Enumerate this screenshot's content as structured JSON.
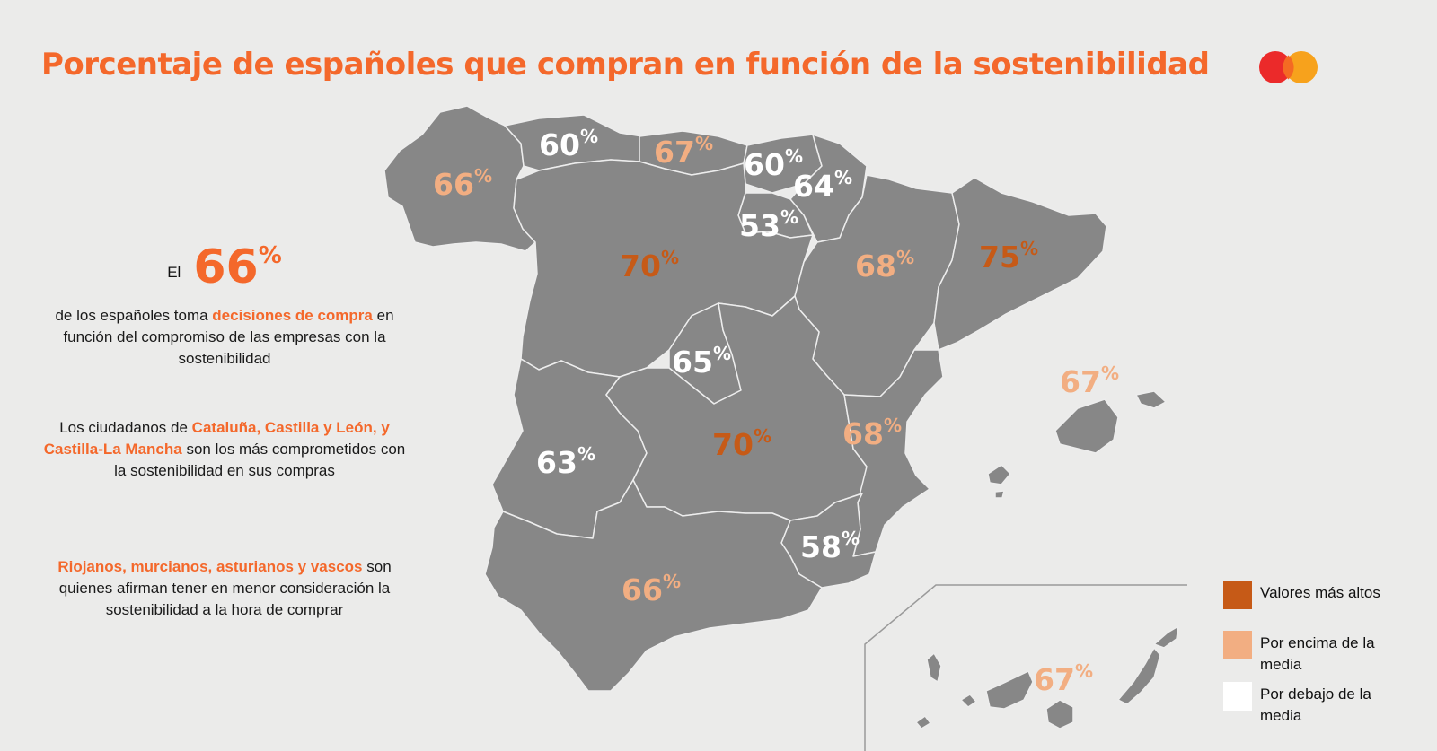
{
  "title": "Porcentaje de españoles que compran en función de la sostenibilidad",
  "logo_icon": "mastercard-circles-icon",
  "summary": {
    "prefix": "El",
    "value": "66",
    "unit": "%",
    "text_before": "de los españoles toma",
    "text_highlight": "decisiones de compra",
    "text_after": "en función del compromiso de las empresas con la sostenibilidad"
  },
  "paragraph_2": {
    "before": "Los ciudadanos de",
    "highlight": "Cataluña, Castilla y León, y Castilla-La Mancha",
    "after": "son los más comprometidos con la sostenibilidad en sus compras"
  },
  "paragraph_3": {
    "highlight": "Riojanos, murcianos, asturianos y vascos",
    "after": "son quienes afirman tener en menor consideración la sostenibilidad a la hora de comprar"
  },
  "regions": [
    {
      "value": "66",
      "unit": "%",
      "category": "above"
    },
    {
      "value": "60",
      "unit": "%",
      "category": "below"
    },
    {
      "value": "67",
      "unit": "%",
      "category": "above"
    },
    {
      "value": "60",
      "unit": "%",
      "category": "below"
    },
    {
      "value": "64",
      "unit": "%",
      "category": "below"
    },
    {
      "value": "53",
      "unit": "%",
      "category": "below"
    },
    {
      "value": "70",
      "unit": "%",
      "category": "high"
    },
    {
      "value": "68",
      "unit": "%",
      "category": "above"
    },
    {
      "value": "75",
      "unit": "%",
      "category": "high"
    },
    {
      "value": "65",
      "unit": "%",
      "category": "below"
    },
    {
      "value": "67",
      "unit": "%",
      "category": "above"
    },
    {
      "value": "63",
      "unit": "%",
      "category": "below"
    },
    {
      "value": "70",
      "unit": "%",
      "category": "high"
    },
    {
      "value": "68",
      "unit": "%",
      "category": "above"
    },
    {
      "value": "58",
      "unit": "%",
      "category": "below"
    },
    {
      "value": "66",
      "unit": "%",
      "category": "above"
    },
    {
      "value": "67",
      "unit": "%",
      "category": "above"
    }
  ],
  "legend": [
    {
      "label": "Valores más altos",
      "color": "#c65a17"
    },
    {
      "label": "Por encima de la media",
      "color": "#f2ae82"
    },
    {
      "label": "Por debajo de la media",
      "color": "#ffffff"
    }
  ],
  "colors": {
    "accent": "#f4682b",
    "map_fill": "#878787",
    "map_border": "#ededed",
    "background": "#ebebea"
  }
}
